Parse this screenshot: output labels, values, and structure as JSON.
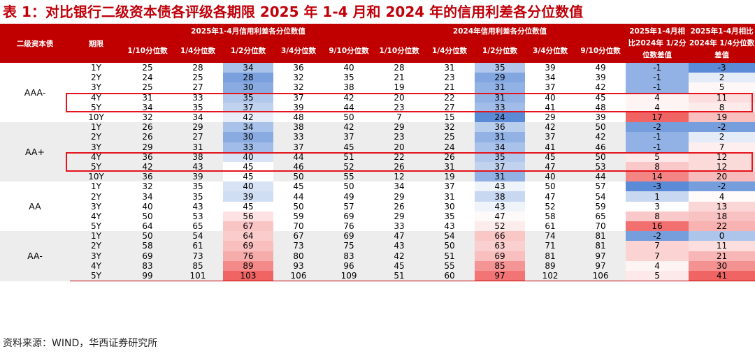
{
  "title": "表 1：对比银行二级资本债各评级各期限 2025 年 1-4 月和 2024 年的信用利差各分位数值",
  "header": {
    "col_bond": "二级资本债",
    "col_term": "期限",
    "group_2025": "2025年1-4月信用利差各分位数值",
    "group_2024": "2024年信用利差各分位数值",
    "diff_half": "2025年1-4月相比2024年 1/2分位数差值",
    "diff_quarter": "2025年1-4月相比2024年 1/4分位数差值",
    "sub_cols": [
      "1/10分位数",
      "1/4分位数",
      "1/2分位数",
      "3/4分位数",
      "9/10分位数",
      "1/10分位数",
      "1/4分位数",
      "1/2分位数",
      "3/4分位数",
      "9/10分位数"
    ]
  },
  "groups": [
    {
      "rating": "AAA-",
      "rows": [
        {
          "term": "1Y",
          "v": [
            25,
            28,
            34,
            36,
            40,
            28,
            31,
            35,
            39,
            49
          ],
          "d": [
            -1,
            -3
          ]
        },
        {
          "term": "2Y",
          "v": [
            24,
            25,
            28,
            32,
            35,
            21,
            23,
            29,
            34,
            39
          ],
          "d": [
            -1,
            2
          ]
        },
        {
          "term": "3Y",
          "v": [
            25,
            27,
            30,
            32,
            38,
            19,
            21,
            31,
            37,
            42
          ],
          "d": [
            -1,
            5
          ]
        },
        {
          "term": "4Y",
          "v": [
            31,
            33,
            35,
            37,
            42,
            20,
            22,
            31,
            40,
            45
          ],
          "d": [
            4,
            11
          ]
        },
        {
          "term": "5Y",
          "v": [
            34,
            35,
            37,
            39,
            44,
            23,
            27,
            33,
            41,
            48
          ],
          "d": [
            4,
            8
          ]
        },
        {
          "term": "10Y",
          "v": [
            32,
            34,
            42,
            48,
            50,
            7,
            15,
            24,
            29,
            39
          ],
          "d": [
            17,
            19
          ]
        }
      ]
    },
    {
      "rating": "AA+",
      "rows": [
        {
          "term": "1Y",
          "v": [
            26,
            29,
            34,
            38,
            42,
            29,
            32,
            36,
            42,
            50
          ],
          "d": [
            -2,
            -2
          ]
        },
        {
          "term": "2Y",
          "v": [
            26,
            27,
            30,
            33,
            37,
            23,
            25,
            31,
            37,
            42
          ],
          "d": [
            -1,
            2
          ]
        },
        {
          "term": "3Y",
          "v": [
            29,
            31,
            33,
            37,
            45,
            20,
            24,
            34,
            41,
            46
          ],
          "d": [
            -1,
            7
          ]
        },
        {
          "term": "4Y",
          "v": [
            36,
            38,
            40,
            44,
            51,
            22,
            26,
            35,
            45,
            50
          ],
          "d": [
            5,
            12
          ]
        },
        {
          "term": "5Y",
          "v": [
            42,
            43,
            45,
            46,
            52,
            26,
            31,
            37,
            47,
            53
          ],
          "d": [
            8,
            12
          ]
        },
        {
          "term": "10Y",
          "v": [
            36,
            39,
            45,
            50,
            55,
            12,
            19,
            31,
            40,
            44
          ],
          "d": [
            14,
            20
          ]
        }
      ]
    },
    {
      "rating": "AA",
      "rows": [
        {
          "term": "1Y",
          "v": [
            32,
            35,
            40,
            45,
            50,
            34,
            37,
            43,
            50,
            57
          ],
          "d": [
            -3,
            -2
          ]
        },
        {
          "term": "2Y",
          "v": [
            34,
            35,
            39,
            44,
            49,
            29,
            31,
            38,
            47,
            54
          ],
          "d": [
            1,
            4
          ]
        },
        {
          "term": "3Y",
          "v": [
            40,
            43,
            45,
            50,
            57,
            26,
            30,
            43,
            52,
            59
          ],
          "d": [
            3,
            13
          ]
        },
        {
          "term": "4Y",
          "v": [
            50,
            53,
            56,
            59,
            69,
            29,
            35,
            47,
            58,
            65
          ],
          "d": [
            8,
            18
          ]
        },
        {
          "term": "5Y",
          "v": [
            64,
            65,
            67,
            70,
            76,
            33,
            43,
            52,
            61,
            70
          ],
          "d": [
            16,
            22
          ]
        }
      ]
    },
    {
      "rating": "AA-",
      "rows": [
        {
          "term": "1Y",
          "v": [
            50,
            54,
            64,
            67,
            69,
            47,
            54,
            66,
            74,
            81
          ],
          "d": [
            -2,
            0
          ]
        },
        {
          "term": "2Y",
          "v": [
            58,
            61,
            69,
            73,
            75,
            43,
            50,
            63,
            71,
            81
          ],
          "d": [
            7,
            11
          ]
        },
        {
          "term": "3Y",
          "v": [
            69,
            73,
            76,
            80,
            83,
            42,
            51,
            69,
            81,
            97
          ],
          "d": [
            7,
            21
          ]
        },
        {
          "term": "4Y",
          "v": [
            83,
            85,
            89,
            93,
            96,
            45,
            55,
            85,
            89,
            97
          ],
          "d": [
            4,
            30
          ]
        },
        {
          "term": "5Y",
          "v": [
            99,
            101,
            103,
            106,
            109,
            51,
            60,
            97,
            102,
            106
          ],
          "d": [
            5,
            41
          ]
        }
      ]
    }
  ],
  "source": "资料来源：WIND，华西证券研究所",
  "colors": {
    "brand_red": "#c00000",
    "highlight": "#e3141c",
    "heat_low": "#5b8ad6",
    "heat_high": "#f06464",
    "shade": "#ededed"
  }
}
